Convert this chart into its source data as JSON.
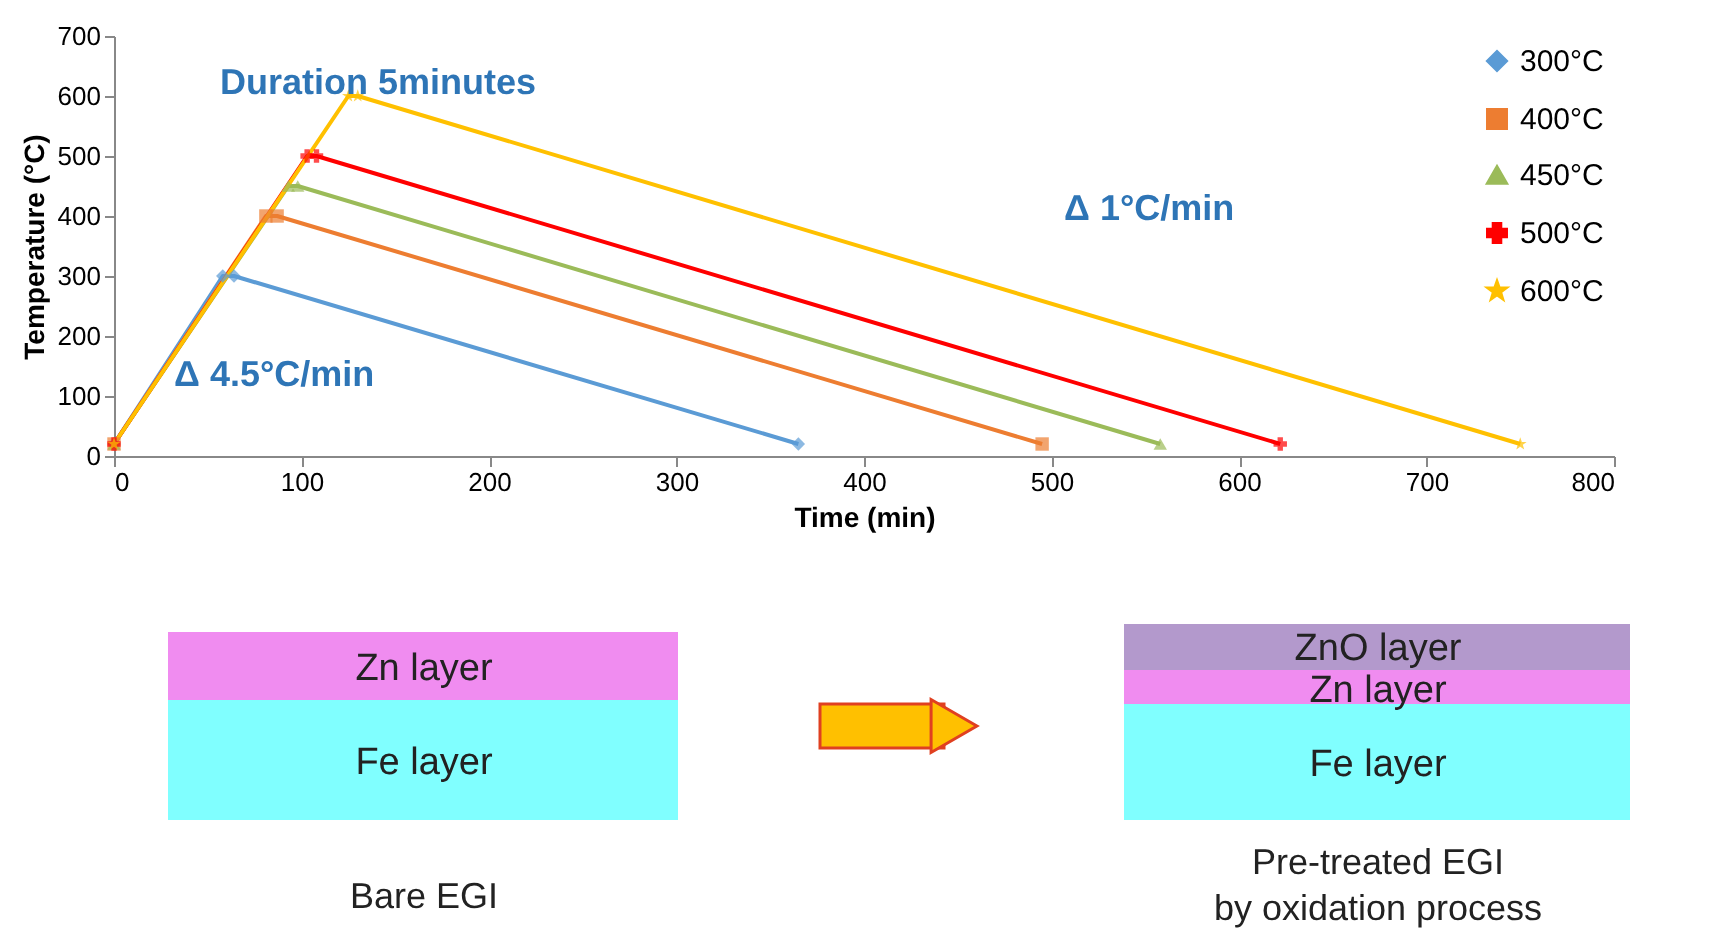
{
  "chart_data": [
    {
      "type": "line",
      "xlabel": "Time (min)",
      "ylabel": "Temperature (°C)",
      "xlim": [
        0,
        800
      ],
      "ylim": [
        0,
        700
      ],
      "xticks": [
        0,
        100,
        200,
        300,
        400,
        500,
        600,
        700,
        800
      ],
      "yticks": [
        0,
        100,
        200,
        300,
        400,
        500,
        600,
        700
      ],
      "grid": false,
      "legend": "top right",
      "line_style": "solid",
      "series": [
        {
          "name": "300°C",
          "color": "#5b9bd5",
          "marker": "diamond",
          "x": [
            0,
            58,
            64,
            365
          ],
          "values": [
            20,
            300,
            300,
            20
          ]
        },
        {
          "name": "400°C",
          "color": "#ed7d31",
          "marker": "square",
          "x": [
            0,
            81,
            87,
            495
          ],
          "values": [
            20,
            400,
            400,
            20
          ]
        },
        {
          "name": "450°C",
          "color": "#9bbb59",
          "marker": "triangle",
          "x": [
            0,
            93,
            98,
            558
          ],
          "values": [
            20,
            450,
            450,
            20
          ]
        },
        {
          "name": "500°C",
          "color": "#ff0000",
          "marker": "cross",
          "x": [
            0,
            103,
            108,
            622
          ],
          "values": [
            20,
            500,
            500,
            20
          ]
        },
        {
          "name": "600°C",
          "color": "#ffc000",
          "marker": "star",
          "x": [
            0,
            125,
            130,
            750
          ],
          "values": [
            20,
            600,
            600,
            20
          ]
        }
      ],
      "annotations": [
        "Duration 5minutes",
        "Δ 1°C/min",
        "Δ 4.5°C/min"
      ]
    },
    {
      "type": "other",
      "annotations": [
        "Zn layer",
        "Fe layer",
        "ZnO layer",
        "Zn layer",
        "Fe layer",
        "Bare EGI",
        "Pre-treated EGI",
        "by oxidation process"
      ]
    }
  ]
}
